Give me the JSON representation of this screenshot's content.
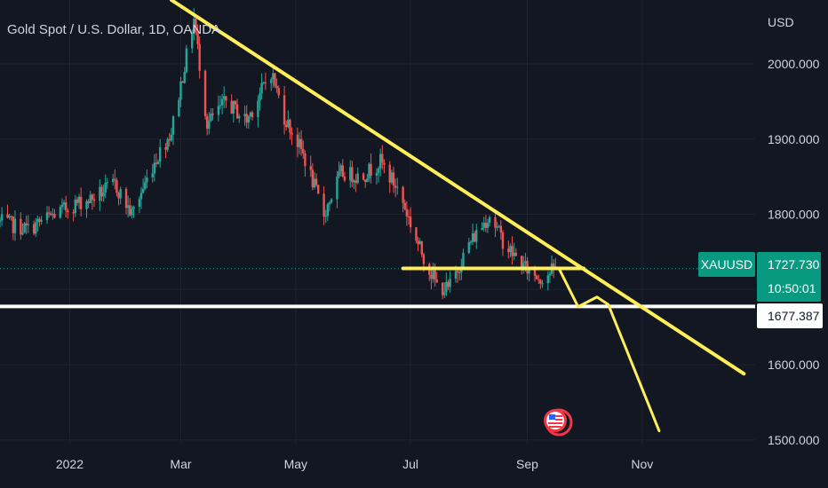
{
  "header": {
    "title": "Gold Spot / U.S. Dollar, 1D, OANDA"
  },
  "axis": {
    "currency": "USD"
  },
  "price_tag": {
    "symbol": "XAUUSD",
    "price": "1727.730",
    "countdown": "10:50:01"
  },
  "level_tag": {
    "value": "1677.387"
  },
  "colors": {
    "background": "#131722",
    "up": "#26a69a",
    "down": "#ef5350",
    "annotation_yellow": "#ffee58",
    "support_white": "#ffffff",
    "price_badge": "#089981",
    "event_icon": "#f23645"
  },
  "icons": {
    "event_marker": "us-flag-economic-event-icon"
  },
  "chart_data": {
    "type": "candlestick",
    "title": "Gold Spot / U.S. Dollar, 1D, OANDA",
    "ylim": [
      1495,
      2085
    ],
    "y_ticks": [
      "2000.000",
      "1900.000",
      "1800.000",
      "1600.000",
      "1500.000"
    ],
    "x_ticks": [
      "2022",
      "Mar",
      "May",
      "Jul",
      "Sep",
      "Nov"
    ],
    "x_tick_dates": [
      "2022-01-01",
      "2022-03-01",
      "2022-05-01",
      "2022-07-01",
      "2022-09-01",
      "2022-11-01"
    ],
    "xlim": [
      "2021-11-25",
      "2022-12-31"
    ],
    "grid": true,
    "last_price": 1727.73,
    "path": [
      [
        "2021-11-25",
        1790
      ],
      [
        "2021-12-10",
        1780
      ],
      [
        "2021-12-20",
        1795
      ],
      [
        "2022-01-05",
        1815
      ],
      [
        "2022-01-12",
        1820
      ],
      [
        "2022-01-25",
        1840
      ],
      [
        "2022-02-03",
        1800
      ],
      [
        "2022-02-15",
        1870
      ],
      [
        "2022-02-24",
        1910
      ],
      [
        "2022-03-08",
        2060
      ],
      [
        "2022-03-15",
        1920
      ],
      [
        "2022-03-25",
        1950
      ],
      [
        "2022-04-05",
        1925
      ],
      [
        "2022-04-18",
        1990
      ],
      [
        "2022-04-25",
        1930
      ],
      [
        "2022-05-05",
        1880
      ],
      [
        "2022-05-16",
        1800
      ],
      [
        "2022-05-25",
        1855
      ],
      [
        "2022-06-05",
        1850
      ],
      [
        "2022-06-15",
        1870
      ],
      [
        "2022-06-25",
        1830
      ],
      [
        "2022-07-05",
        1760
      ],
      [
        "2022-07-15",
        1705
      ],
      [
        "2022-07-21",
        1700
      ],
      [
        "2022-08-01",
        1760
      ],
      [
        "2022-08-12",
        1800
      ],
      [
        "2022-08-20",
        1760
      ],
      [
        "2022-08-30",
        1730
      ],
      [
        "2022-09-08",
        1715
      ],
      [
        "2022-09-16",
        1727.73
      ]
    ],
    "annotations": {
      "downtrend_line": [
        [
          "2022-02-24",
          2085
        ],
        [
          "2022-12-25",
          1588
        ]
      ],
      "neckline": [
        [
          "2022-06-27",
          1728
        ],
        [
          "2022-10-01",
          1728
        ]
      ],
      "support_level": 1677.387,
      "projection": [
        [
          "2022-09-18",
          1727
        ],
        [
          "2022-09-28",
          1677
        ],
        [
          "2022-10-08",
          1690
        ],
        [
          "2022-10-14",
          1680
        ],
        [
          "2022-11-10",
          1512
        ]
      ]
    }
  }
}
